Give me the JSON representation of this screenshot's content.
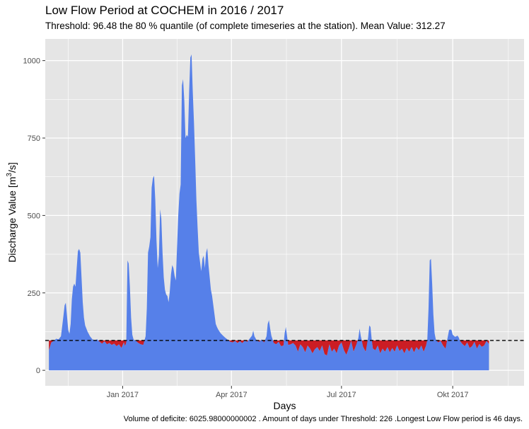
{
  "title": "Low Flow Period at COCHEM in 2016 / 2017",
  "subtitle": "Threshold: 96.48 the 80 % quantile (of complete timeseries at the station). Mean Value: 312.27",
  "footnote": "Volume of deficite:  6025.98000000002 . Amount of days under Threshold: 226 .Longest Low Flow period is 46 days.",
  "colors": {
    "panel": "#e5e5e5",
    "grid": "#ffffff",
    "flow": "#5680e9",
    "deficit": "#cb1d24",
    "threshold": "#000000"
  },
  "chart_data": {
    "type": "area",
    "title": "Low Flow Period at COCHEM in 2016 / 2017",
    "xlabel": "Days",
    "ylabel_prefix": "Discharge Value [m",
    "ylabel_sup": "3",
    "ylabel_suffix": "/s]",
    "xlim": [
      -3,
      393
    ],
    "ylim": [
      -50,
      1070
    ],
    "x_unit": "days since 2016-11-01",
    "x_ticks": [
      {
        "x": 61,
        "label": "Jan 2017"
      },
      {
        "x": 151,
        "label": "Apr 2017"
      },
      {
        "x": 242,
        "label": "Jul 2017"
      },
      {
        "x": 334,
        "label": "Okt 2017"
      }
    ],
    "y_ticks": [
      0,
      250,
      500,
      750,
      1000
    ],
    "threshold": 96.48,
    "threshold_label": "80 % quantile",
    "series": [
      {
        "name": "Discharge",
        "points": [
          [
            0,
            65
          ],
          [
            2,
            90
          ],
          [
            4,
            95
          ],
          [
            6,
            102
          ],
          [
            8,
            100
          ],
          [
            10,
            110
          ],
          [
            12,
            175
          ],
          [
            13,
            210
          ],
          [
            14,
            218
          ],
          [
            15,
            175
          ],
          [
            16,
            130
          ],
          [
            17,
            118
          ],
          [
            18,
            150
          ],
          [
            19,
            230
          ],
          [
            20,
            270
          ],
          [
            21,
            280
          ],
          [
            22,
            270
          ],
          [
            23,
            330
          ],
          [
            24,
            385
          ],
          [
            25,
            392
          ],
          [
            26,
            380
          ],
          [
            27,
            300
          ],
          [
            28,
            220
          ],
          [
            29,
            170
          ],
          [
            30,
            145
          ],
          [
            32,
            125
          ],
          [
            34,
            110
          ],
          [
            36,
            100
          ],
          [
            38,
            98
          ],
          [
            40,
            100
          ],
          [
            42,
            92
          ],
          [
            44,
            86
          ],
          [
            46,
            94
          ],
          [
            48,
            84
          ],
          [
            50,
            88
          ],
          [
            52,
            82
          ],
          [
            54,
            86
          ],
          [
            56,
            78
          ],
          [
            58,
            84
          ],
          [
            60,
            72
          ],
          [
            62,
            90
          ],
          [
            63,
            78
          ],
          [
            64,
            90
          ],
          [
            65,
            355
          ],
          [
            66,
            345
          ],
          [
            67,
            270
          ],
          [
            68,
            170
          ],
          [
            69,
            115
          ],
          [
            70,
            100
          ],
          [
            72,
            95
          ],
          [
            74,
            88
          ],
          [
            76,
            84
          ],
          [
            78,
            82
          ],
          [
            80,
            110
          ],
          [
            81,
            200
          ],
          [
            82,
            380
          ],
          [
            83,
            400
          ],
          [
            84,
            430
          ],
          [
            85,
            590
          ],
          [
            86,
            620
          ],
          [
            87,
            628
          ],
          [
            88,
            550
          ],
          [
            89,
            420
          ],
          [
            90,
            330
          ],
          [
            91,
            370
          ],
          [
            92,
            520
          ],
          [
            93,
            490
          ],
          [
            94,
            380
          ],
          [
            95,
            300
          ],
          [
            96,
            260
          ],
          [
            97,
            245
          ],
          [
            98,
            240
          ],
          [
            99,
            220
          ],
          [
            100,
            255
          ],
          [
            101,
            310
          ],
          [
            102,
            340
          ],
          [
            103,
            330
          ],
          [
            104,
            305
          ],
          [
            105,
            290
          ],
          [
            106,
            400
          ],
          [
            107,
            500
          ],
          [
            108,
            570
          ],
          [
            109,
            600
          ],
          [
            110,
            920
          ],
          [
            111,
            940
          ],
          [
            112,
            870
          ],
          [
            113,
            750
          ],
          [
            114,
            760
          ],
          [
            115,
            755
          ],
          [
            116,
            900
          ],
          [
            117,
            1010
          ],
          [
            118,
            1020
          ],
          [
            119,
            900
          ],
          [
            120,
            800
          ],
          [
            121,
            680
          ],
          [
            122,
            550
          ],
          [
            123,
            460
          ],
          [
            124,
            380
          ],
          [
            125,
            350
          ],
          [
            126,
            320
          ],
          [
            127,
            360
          ],
          [
            128,
            370
          ],
          [
            129,
            330
          ],
          [
            130,
            380
          ],
          [
            131,
            395
          ],
          [
            132,
            340
          ],
          [
            133,
            300
          ],
          [
            134,
            260
          ],
          [
            135,
            240
          ],
          [
            136,
            210
          ],
          [
            137,
            180
          ],
          [
            138,
            150
          ],
          [
            139,
            140
          ],
          [
            140,
            132
          ],
          [
            142,
            120
          ],
          [
            144,
            112
          ],
          [
            146,
            105
          ],
          [
            148,
            99
          ],
          [
            150,
            92
          ],
          [
            152,
            90
          ],
          [
            154,
            95
          ],
          [
            156,
            88
          ],
          [
            158,
            94
          ],
          [
            160,
            88
          ],
          [
            162,
            96
          ],
          [
            164,
            92
          ],
          [
            166,
            102
          ],
          [
            168,
            112
          ],
          [
            169,
            128
          ],
          [
            170,
            110
          ],
          [
            172,
            96
          ],
          [
            174,
            92
          ],
          [
            176,
            100
          ],
          [
            178,
            90
          ],
          [
            180,
            110
          ],
          [
            181,
            150
          ],
          [
            182,
            162
          ],
          [
            183,
            135
          ],
          [
            184,
            112
          ],
          [
            186,
            88
          ],
          [
            188,
            84
          ],
          [
            190,
            92
          ],
          [
            192,
            78
          ],
          [
            194,
            80
          ],
          [
            195,
            120
          ],
          [
            196,
            140
          ],
          [
            197,
            110
          ],
          [
            198,
            82
          ],
          [
            200,
            84
          ],
          [
            202,
            88
          ],
          [
            204,
            80
          ],
          [
            206,
            60
          ],
          [
            208,
            84
          ],
          [
            210,
            75
          ],
          [
            212,
            58
          ],
          [
            214,
            80
          ],
          [
            216,
            70
          ],
          [
            218,
            55
          ],
          [
            220,
            68
          ],
          [
            222,
            75
          ],
          [
            224,
            62
          ],
          [
            226,
            80
          ],
          [
            228,
            52
          ],
          [
            230,
            48
          ],
          [
            232,
            84
          ],
          [
            234,
            60
          ],
          [
            236,
            70
          ],
          [
            238,
            55
          ],
          [
            240,
            80
          ],
          [
            242,
            90
          ],
          [
            244,
            65
          ],
          [
            246,
            50
          ],
          [
            248,
            70
          ],
          [
            250,
            95
          ],
          [
            252,
            60
          ],
          [
            254,
            80
          ],
          [
            256,
            105
          ],
          [
            257,
            135
          ],
          [
            258,
            110
          ],
          [
            260,
            75
          ],
          [
            262,
            60
          ],
          [
            264,
            105
          ],
          [
            265,
            145
          ],
          [
            266,
            140
          ],
          [
            267,
            100
          ],
          [
            268,
            70
          ],
          [
            270,
            65
          ],
          [
            272,
            80
          ],
          [
            274,
            55
          ],
          [
            276,
            70
          ],
          [
            278,
            60
          ],
          [
            280,
            75
          ],
          [
            282,
            58
          ],
          [
            284,
            72
          ],
          [
            286,
            60
          ],
          [
            288,
            80
          ],
          [
            290,
            62
          ],
          [
            292,
            70
          ],
          [
            294,
            55
          ],
          [
            296,
            72
          ],
          [
            298,
            60
          ],
          [
            300,
            75
          ],
          [
            302,
            58
          ],
          [
            304,
            75
          ],
          [
            306,
            65
          ],
          [
            308,
            80
          ],
          [
            310,
            60
          ],
          [
            312,
            80
          ],
          [
            313,
            100
          ],
          [
            314,
            200
          ],
          [
            315,
            355
          ],
          [
            316,
            360
          ],
          [
            317,
            280
          ],
          [
            318,
            180
          ],
          [
            319,
            120
          ],
          [
            320,
            100
          ],
          [
            322,
            90
          ],
          [
            324,
            95
          ],
          [
            326,
            80
          ],
          [
            328,
            70
          ],
          [
            330,
            110
          ],
          [
            331,
            130
          ],
          [
            332,
            132
          ],
          [
            333,
            130
          ],
          [
            334,
            115
          ],
          [
            336,
            108
          ],
          [
            338,
            112
          ],
          [
            339,
            106
          ],
          [
            340,
            95
          ],
          [
            342,
            85
          ],
          [
            344,
            78
          ],
          [
            346,
            90
          ],
          [
            348,
            72
          ],
          [
            350,
            78
          ],
          [
            352,
            92
          ],
          [
            354,
            70
          ],
          [
            356,
            85
          ],
          [
            358,
            76
          ],
          [
            360,
            80
          ],
          [
            362,
            95
          ],
          [
            364,
            85
          ]
        ]
      }
    ]
  }
}
